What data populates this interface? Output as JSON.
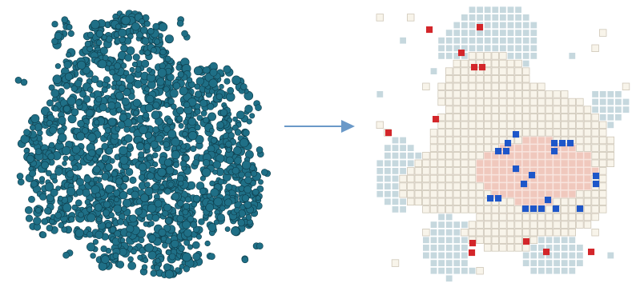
{
  "figure": {
    "source_panel": {
      "style": "molecular-blob",
      "color": "#1f6f86"
    },
    "arrow": {
      "direction": "right",
      "color": "#6a99c8"
    },
    "target_panel": {
      "style": "voxel-grid",
      "colors": {
        "empty_cell": "#f8f4ea",
        "empty_outline": "#cfc7b8",
        "surface_cell": "#c6d8de",
        "core_cell": "#f0c8bd",
        "red_marker": "#d3262a",
        "blue_marker": "#1d56c9"
      }
    }
  }
}
